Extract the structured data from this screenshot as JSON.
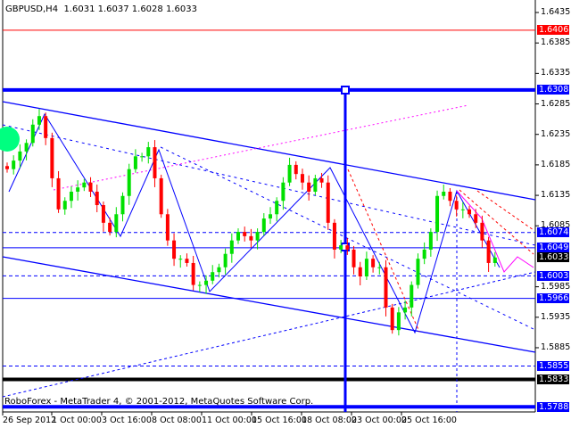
{
  "header": {
    "symbol": "GBPUSD,H4",
    "ohlc": "1.6031 1.6037 1.6028 1.6033"
  },
  "footer": {
    "copyright": "RoboForex - MetaTrader 4, © 2001-2012, MetaQuotes Software Corp."
  },
  "chart_data": {
    "type": "candlestick",
    "symbol": "GBPUSD",
    "timeframe": "H4",
    "ylim": [
      1.577,
      1.6455
    ],
    "grid": false,
    "y_ticks": [
      "1.6435",
      "1.6385",
      "1.6335",
      "1.6285",
      "1.6235",
      "1.6185",
      "1.6135",
      "1.6085",
      "1.5985",
      "1.5935",
      "1.5885"
    ],
    "x_ticks": [
      "26 Sep 2012",
      "1 Oct 00:00",
      "3 Oct 16:00",
      "8 Oct 08:00",
      "11 Oct 00:00",
      "15 Oct 16:00",
      "18 Oct 08:00",
      "23 Oct 00:00",
      "25 Oct 16:00"
    ],
    "closes": [
      1.6178,
      1.6192,
      1.6207,
      1.6221,
      1.6251,
      1.6265,
      1.6229,
      1.6163,
      1.6112,
      1.6126,
      1.6141,
      1.6148,
      1.6156,
      1.6141,
      1.6119,
      1.609,
      1.6075,
      1.6104,
      1.6134,
      1.6178,
      1.6199,
      1.6199,
      1.6214,
      1.6163,
      1.6104,
      1.6061,
      1.6031,
      1.6031,
      1.6024,
      1.5988,
      1.5988,
      1.5995,
      1.6009,
      1.6017,
      1.6039,
      1.6061,
      1.6075,
      1.6068,
      1.6061,
      1.6075,
      1.6097,
      1.6104,
      1.6126,
      1.6156,
      1.6185,
      1.617,
      1.6156,
      1.6141,
      1.6163,
      1.6156,
      1.609,
      1.6046,
      1.6053,
      1.6046,
      1.6017,
      1.6002,
      1.6031,
      1.6017,
      1.6017,
      1.5951,
      1.5914,
      1.5943,
      1.5951,
      1.5988,
      1.6031,
      1.6046,
      1.6075,
      1.6134,
      1.6141,
      1.6126,
      1.6112,
      1.6112,
      1.6104,
      1.609,
      1.6061,
      1.6024,
      1.6033
    ],
    "levels": [
      {
        "price": "1.6406",
        "color": "#ff0000",
        "style": "thin",
        "label_bg": "#ff0000"
      },
      {
        "price": "1.6308",
        "color": "#0000ff",
        "style": "thick",
        "label_bg": "#0000ff"
      },
      {
        "price": "1.6074",
        "color": "#0000ff",
        "style": "dashed",
        "label_bg": "#0000ff"
      },
      {
        "price": "1.6049",
        "color": "#0000ff",
        "style": "solid",
        "label_bg": "#0000ff"
      },
      {
        "price": "1.6033",
        "color": "#000000",
        "style": "none",
        "label_bg": "#000000"
      },
      {
        "price": "1.6003",
        "color": "#0000ff",
        "style": "dashed",
        "label_bg": "#0000ff"
      },
      {
        "price": "1.5966",
        "color": "#0000ff",
        "style": "solid",
        "label_bg": "#0000ff"
      },
      {
        "price": "1.5855",
        "color": "#0000ff",
        "style": "dashed",
        "label_bg": "#0000ff"
      },
      {
        "price": "1.5833",
        "color": "#000000",
        "style": "thick",
        "label_bg": "#000000"
      },
      {
        "price": "1.5788",
        "color": "#0000ff",
        "style": "thick",
        "label_bg": "#0000ff"
      }
    ],
    "colors": {
      "bull": "#00e000",
      "bear": "#ff0000",
      "lines": "#0000ff",
      "trend": "#ff00ff"
    }
  }
}
